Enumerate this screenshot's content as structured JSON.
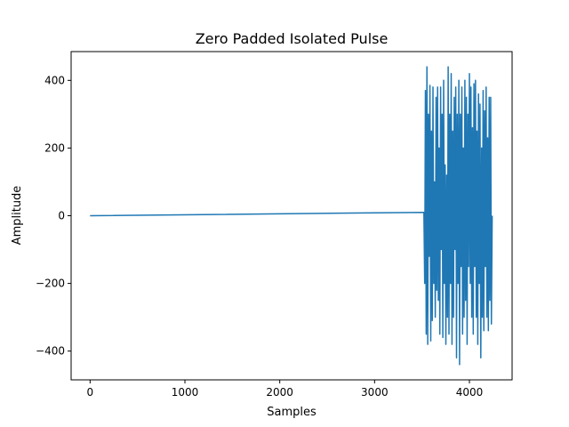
{
  "chart_data": {
    "type": "line",
    "title": "Zero Padded Isolated Pulse",
    "xlabel": "Samples",
    "ylabel": "Amplitude",
    "xlim": [
      -200,
      4450
    ],
    "ylim": [
      -485,
      485
    ],
    "xticks": [
      0,
      1000,
      2000,
      3000,
      4000
    ],
    "xtick_labels": [
      "0",
      "1000",
      "2000",
      "3000",
      "4000"
    ],
    "yticks": [
      -400,
      -200,
      0,
      200,
      400
    ],
    "ytick_labels": [
      "−400",
      "−200",
      "0",
      "200",
      "400"
    ],
    "grid": false,
    "series": [
      {
        "color": "#1f77b4",
        "x": [
          0,
          3520,
          3528,
          3536,
          3544,
          3552,
          3560,
          3568,
          3576,
          3584,
          3592,
          3600,
          3608,
          3616,
          3624,
          3632,
          3640,
          3648,
          3656,
          3664,
          3672,
          3680,
          3688,
          3696,
          3704,
          3712,
          3720,
          3728,
          3736,
          3744,
          3752,
          3760,
          3768,
          3776,
          3784,
          3792,
          3800,
          3808,
          3816,
          3824,
          3832,
          3840,
          3848,
          3856,
          3864,
          3872,
          3880,
          3888,
          3896,
          3904,
          3912,
          3920,
          3928,
          3936,
          3944,
          3952,
          3960,
          3968,
          3976,
          3984,
          3992,
          4000,
          4008,
          4016,
          4024,
          4032,
          4040,
          4048,
          4056,
          4064,
          4072,
          4080,
          4088,
          4096,
          4104,
          4112,
          4120,
          4128,
          4136,
          4144,
          4152,
          4160,
          4168,
          4176,
          4184,
          4192,
          4200,
          4208,
          4216,
          4224,
          4232,
          4240
        ],
        "y": [
          0,
          10,
          -200,
          370,
          -350,
          440,
          -380,
          300,
          -120,
          385,
          -370,
          250,
          -310,
          380,
          -200,
          100,
          -300,
          350,
          -220,
          380,
          -250,
          200,
          -350,
          380,
          -100,
          300,
          -360,
          400,
          -200,
          150,
          -380,
          120,
          -300,
          440,
          -350,
          300,
          -200,
          420,
          -380,
          250,
          -300,
          350,
          -100,
          380,
          -420,
          300,
          -200,
          400,
          -440,
          300,
          -150,
          380,
          -350,
          200,
          -300,
          400,
          -250,
          350,
          -380,
          300,
          -150,
          420,
          -200,
          380,
          -300,
          260,
          -350,
          390,
          -150,
          400,
          -300,
          250,
          -380,
          360,
          -200,
          330,
          -420,
          200,
          -300,
          370,
          -340,
          310,
          -150,
          380,
          -300,
          230,
          -340,
          350,
          -250,
          350,
          -320,
          0
        ]
      }
    ]
  }
}
